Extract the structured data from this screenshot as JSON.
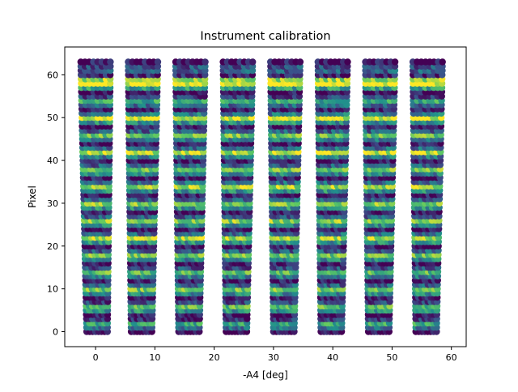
{
  "chart_data": {
    "type": "scatter",
    "title": "Instrument calibration",
    "xlabel": "-A4 [deg]",
    "ylabel": "Pixel",
    "xlim": [
      -5.2,
      62.5
    ],
    "ylim": [
      -3.5,
      66.5
    ],
    "xticks": [
      0,
      10,
      20,
      30,
      40,
      50,
      60
    ],
    "yticks": [
      0,
      10,
      20,
      30,
      40,
      50,
      60
    ],
    "grid": false,
    "legend": "none",
    "colormap": "viridis",
    "colormap_stops": [
      "#440154",
      "#3b528b",
      "#21918c",
      "#5ec962",
      "#fde725"
    ],
    "pixel_range": [
      0,
      63
    ],
    "series": [
      {
        "x_bottom": [
          -1.5,
          2.0
        ],
        "x_top": [
          -2.5,
          2.5
        ]
      },
      {
        "x_bottom": [
          6.0,
          9.5
        ],
        "x_top": [
          5.5,
          10.5
        ]
      },
      {
        "x_bottom": [
          14.0,
          17.5
        ],
        "x_top": [
          13.5,
          18.5
        ]
      },
      {
        "x_bottom": [
          22.0,
          25.5
        ],
        "x_top": [
          21.5,
          26.5
        ]
      },
      {
        "x_bottom": [
          30.0,
          33.5
        ],
        "x_top": [
          29.5,
          34.5
        ]
      },
      {
        "x_bottom": [
          38.0,
          41.5
        ],
        "x_top": [
          37.5,
          42.5
        ]
      },
      {
        "x_bottom": [
          46.0,
          49.5
        ],
        "x_top": [
          45.5,
          50.5
        ]
      },
      {
        "x_bottom": [
          54.0,
          57.5
        ],
        "x_top": [
          53.5,
          58.5
        ]
      }
    ],
    "pixel_intensity": [
      0.0,
      0.35,
      0.6,
      0.15,
      0.05,
      0.5,
      0.7,
      0.2,
      0.05,
      0.45,
      0.75,
      0.3,
      0.05,
      0.4,
      0.7,
      0.25,
      0.05,
      0.45,
      0.75,
      0.3,
      0.05,
      0.5,
      0.85,
      0.35,
      0.05,
      0.45,
      0.8,
      0.3,
      0.05,
      0.5,
      0.8,
      0.3,
      0.05,
      0.5,
      0.85,
      0.35,
      0.05,
      0.45,
      0.75,
      0.3,
      0.05,
      0.4,
      0.9,
      0.35,
      0.05,
      0.45,
      0.75,
      0.3,
      0.05,
      0.5,
      0.95,
      0.4,
      0.05,
      0.35,
      0.6,
      0.2,
      0.05,
      0.55,
      1.0,
      0.85,
      0.1,
      0.3,
      0.25,
      0.05
    ]
  }
}
